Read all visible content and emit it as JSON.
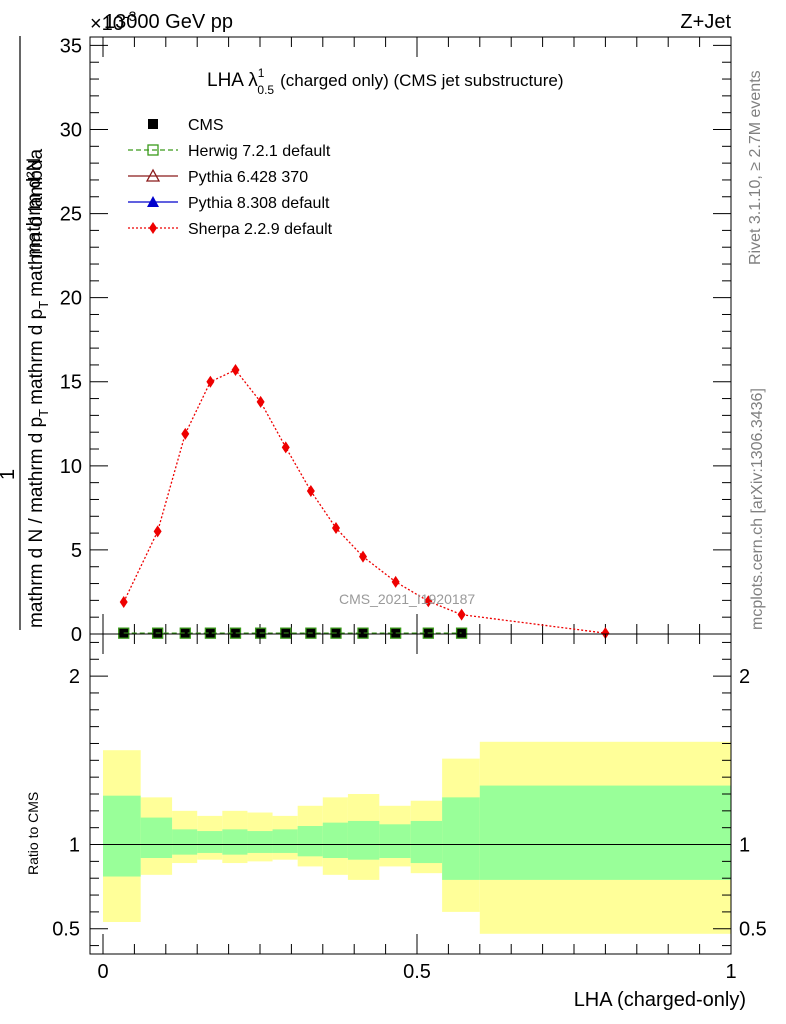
{
  "header": {
    "left": "13000 GeV pp",
    "right": "Z+Jet",
    "exponent": "×10",
    "exponent_power": "-3"
  },
  "side_labels": {
    "rivet": "Rivet 3.1.10, ≥ 2.7M events",
    "mcplots": "mcplots.cern.ch [arXiv:1306.3436]"
  },
  "watermark": "CMS_2021_I1920187",
  "chart_data": [
    {
      "type": "scatter",
      "title": "LHA λ",
      "title_sup": "1",
      "title_sub": "0.5",
      "title_rest": "(charged only) (CMS jet substructure)",
      "ylabel_numer": "mathrm d²N",
      "ylabel_denom": "mathrm d N / mathrm d p",
      "ylabel_denom2": "mathrm d p",
      "ylabel_denom_tail": "mathrm d lambda",
      "ylabel_sub": "T",
      "ylabel_one": "1",
      "ylim": [
        0,
        35.5
      ],
      "y_scale_note": "×10^-3",
      "yticks": [
        0,
        5,
        10,
        15,
        20,
        25,
        30,
        35
      ],
      "ytick_labels": [
        "0",
        "5",
        "10",
        "15",
        "20",
        "25",
        "30",
        "35"
      ],
      "xlim": [
        0,
        1
      ],
      "legend_position": "top-left",
      "series": [
        {
          "name": "CMS",
          "color": "#000000",
          "marker": "square",
          "x": [
            0.033,
            0.087,
            0.131,
            0.171,
            0.211,
            0.251,
            0.291,
            0.331,
            0.371,
            0.414,
            0.466,
            0.518,
            0.571
          ],
          "y": [
            0.05,
            0.05,
            0.05,
            0.05,
            0.05,
            0.05,
            0.05,
            0.05,
            0.05,
            0.05,
            0.05,
            0.05,
            0.05
          ]
        },
        {
          "name": "Herwig 7.2.1 default",
          "color": "#3a9a1a",
          "marker": "open-square",
          "line": "dashed",
          "x": [
            0.033,
            0.087,
            0.131,
            0.171,
            0.211,
            0.251,
            0.291,
            0.331,
            0.371,
            0.414,
            0.466,
            0.518,
            0.571
          ],
          "y": [
            0.05,
            0.05,
            0.05,
            0.05,
            0.05,
            0.05,
            0.05,
            0.05,
            0.05,
            0.05,
            0.05,
            0.05,
            0.05
          ]
        },
        {
          "name": "Pythia 6.428 370",
          "color": "#8b1a1a",
          "marker": "open-triangle",
          "line": "solid",
          "x": [],
          "y": []
        },
        {
          "name": "Pythia 8.308 default",
          "color": "#0000cc",
          "marker": "triangle",
          "line": "solid",
          "x": [],
          "y": []
        },
        {
          "name": "Sherpa 2.2.9 default",
          "color": "#ee0000",
          "marker": "diamond",
          "line": "dotted",
          "x": [
            0.033,
            0.087,
            0.131,
            0.171,
            0.211,
            0.251,
            0.291,
            0.331,
            0.371,
            0.414,
            0.466,
            0.518,
            0.571,
            0.8
          ],
          "y": [
            1.9,
            6.1,
            11.9,
            15.0,
            15.7,
            13.8,
            11.1,
            8.5,
            6.3,
            4.6,
            3.1,
            1.95,
            1.15,
            0.05
          ]
        }
      ]
    },
    {
      "type": "area",
      "ylabel": "Ratio to CMS",
      "xlabel": "LHA (charged-only)",
      "ylim": [
        0.35,
        2.25
      ],
      "xlim": [
        0,
        1
      ],
      "yticks": [
        0.5,
        1,
        2
      ],
      "ytick_labels": [
        "0.5",
        "1",
        "2"
      ],
      "xticks": [
        0,
        0.5,
        1
      ],
      "xtick_labels": [
        "0",
        "0.5",
        "1"
      ],
      "bins": [
        0,
        0.06,
        0.11,
        0.15,
        0.19,
        0.23,
        0.27,
        0.31,
        0.35,
        0.39,
        0.44,
        0.49,
        0.54,
        0.6,
        1.0
      ],
      "inner_band": {
        "color": "#99ff99",
        "lower": [
          0.81,
          0.92,
          0.94,
          0.95,
          0.94,
          0.95,
          0.95,
          0.93,
          0.92,
          0.91,
          0.92,
          0.89,
          0.79,
          0.79
        ],
        "upper": [
          1.29,
          1.16,
          1.09,
          1.08,
          1.09,
          1.08,
          1.09,
          1.11,
          1.13,
          1.14,
          1.12,
          1.14,
          1.28,
          1.35
        ]
      },
      "outer_band": {
        "color": "#ffff99",
        "lower": [
          0.54,
          0.82,
          0.89,
          0.91,
          0.89,
          0.9,
          0.91,
          0.87,
          0.82,
          0.79,
          0.87,
          0.83,
          0.6,
          0.47
        ],
        "upper": [
          1.56,
          1.28,
          1.2,
          1.17,
          1.2,
          1.19,
          1.17,
          1.23,
          1.28,
          1.3,
          1.23,
          1.26,
          1.51,
          1.61
        ]
      },
      "reference_line": 1.0
    }
  ]
}
